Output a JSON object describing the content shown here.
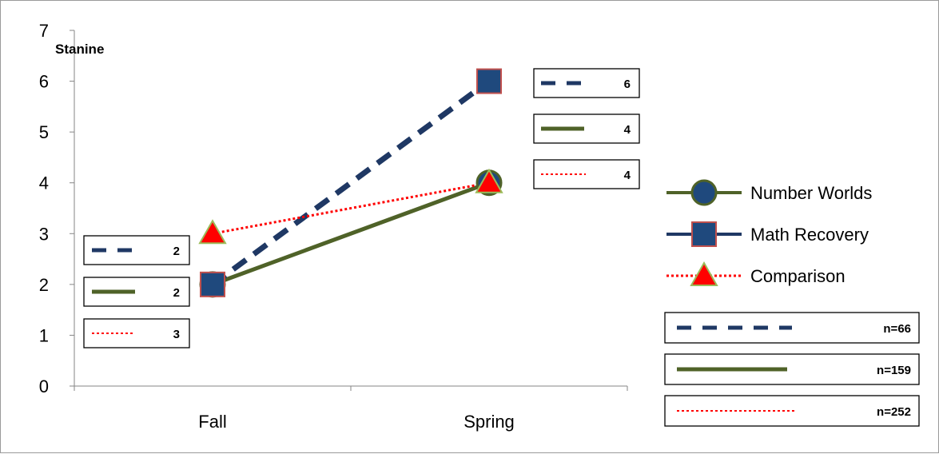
{
  "chart_data": {
    "type": "line",
    "title": "",
    "xlabel": "",
    "ylabel": "Stanine",
    "categories": [
      "Fall",
      "Spring"
    ],
    "ylim": [
      0,
      7
    ],
    "yticks": [
      0,
      1,
      2,
      3,
      4,
      5,
      6,
      7
    ],
    "grid": false,
    "legend_position": "right",
    "series": [
      {
        "name": "Number Worlds",
        "values": [
          2,
          4
        ],
        "color": "#4f6228",
        "line_style": "solid",
        "marker": "circle",
        "marker_fill": "#1f497d",
        "marker_edge": "#4f6228"
      },
      {
        "name": "Math Recovery",
        "values": [
          2,
          6
        ],
        "color": "#1f3864",
        "line_style": "dashed",
        "marker": "square",
        "marker_fill": "#1f497d",
        "marker_edge": "#c0504d"
      },
      {
        "name": "Comparison",
        "values": [
          3,
          4
        ],
        "color": "#ff0000",
        "line_style": "dotted",
        "marker": "triangle",
        "marker_fill": "#ff0000",
        "marker_edge": "#9bbb59"
      }
    ],
    "annotations": {
      "fall_boxes": [
        {
          "style": "dashed",
          "color": "#1f3864",
          "text": "2"
        },
        {
          "style": "solid",
          "color": "#4f6228",
          "text": "2"
        },
        {
          "style": "dotted",
          "color": "#ff0000",
          "text": "3"
        }
      ],
      "spring_boxes": [
        {
          "style": "dashed",
          "color": "#1f3864",
          "text": "6"
        },
        {
          "style": "solid",
          "color": "#4f6228",
          "text": "4"
        },
        {
          "style": "dotted",
          "color": "#ff0000",
          "text": "4"
        }
      ],
      "n_boxes": [
        {
          "style": "dashed",
          "color": "#1f3864",
          "text": "n=66"
        },
        {
          "style": "solid",
          "color": "#4f6228",
          "text": "n=159"
        },
        {
          "style": "dotted",
          "color": "#ff0000",
          "text": "n=252"
        }
      ]
    }
  }
}
